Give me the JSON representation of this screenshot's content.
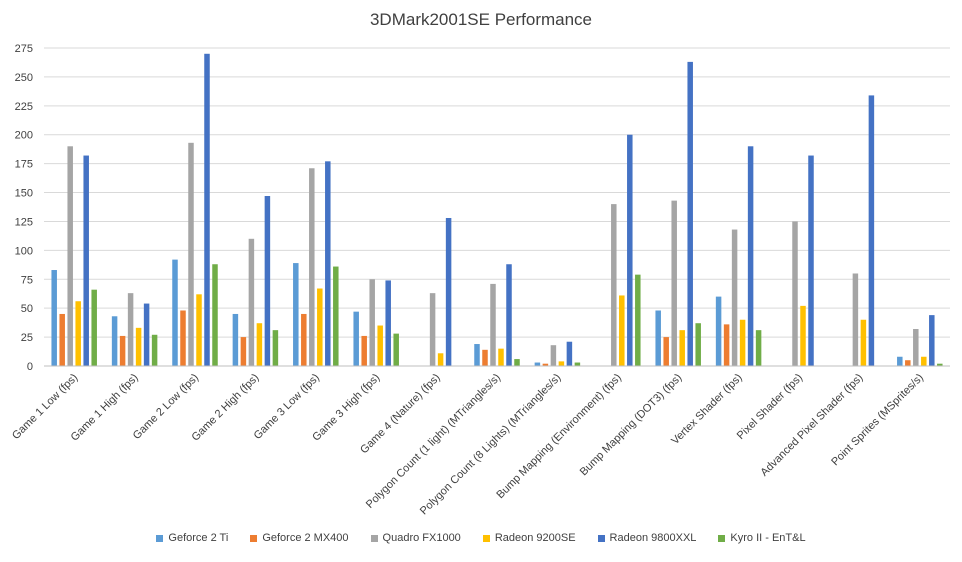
{
  "chart_data": {
    "type": "bar",
    "title": "3DMark2001SE Performance",
    "xlabel": "",
    "ylabel": "",
    "ylim": [
      0,
      275
    ],
    "yticks": [
      "0",
      "25",
      "50",
      "75",
      "100",
      "125",
      "150",
      "175",
      "200",
      "225",
      "250",
      "275"
    ],
    "grid": true,
    "legend_position": "bottom",
    "categories": [
      "Game 1 Low (fps)",
      "Game 1 High (fps)",
      "Game 2 Low (fps)",
      "Game 2 High (fps)",
      "Game 3 Low (fps)",
      "Game 3 High (fps)",
      "Game 4 (Nature) (fps)",
      "Polygon Count (1 light) (MTriangles/s)",
      "Polygon Count (8 Lights) (MTriangles/s)",
      "Bump Mapping (Environment) (fps)",
      "Bump Mapping (DOT3) (fps)",
      "Vertex Shader (fps)",
      "Pixel Shader (fps)",
      "Advanced Pixel Shader (fps)",
      "Point Sprites (MSprites/s)"
    ],
    "series": [
      {
        "name": "Geforce 2 Ti",
        "color": "#5B9BD5",
        "values": [
          83,
          43,
          92,
          45,
          89,
          47,
          null,
          19,
          3,
          null,
          48,
          60,
          null,
          null,
          8
        ]
      },
      {
        "name": "Geforce 2 MX400",
        "color": "#ED7D31",
        "values": [
          45,
          26,
          48,
          25,
          45,
          26,
          null,
          14,
          2,
          null,
          25,
          36,
          null,
          null,
          5
        ]
      },
      {
        "name": "Quadro FX1000",
        "color": "#A5A5A5",
        "values": [
          190,
          63,
          193,
          110,
          171,
          75,
          63,
          71,
          18,
          140,
          143,
          118,
          125,
          80,
          32
        ]
      },
      {
        "name": "Radeon 9200SE",
        "color": "#FFC000",
        "values": [
          56,
          33,
          62,
          37,
          67,
          35,
          11,
          15,
          4,
          61,
          31,
          40,
          52,
          40,
          8
        ]
      },
      {
        "name": "Radeon 9800XXL",
        "color": "#4472C4",
        "values": [
          182,
          54,
          270,
          147,
          177,
          74,
          128,
          88,
          21,
          200,
          263,
          190,
          182,
          234,
          44
        ]
      },
      {
        "name": "Kyro II - EnT&L",
        "color": "#70AD47",
        "values": [
          66,
          27,
          88,
          31,
          86,
          28,
          null,
          6,
          3,
          79,
          37,
          31,
          null,
          null,
          2
        ]
      }
    ]
  }
}
